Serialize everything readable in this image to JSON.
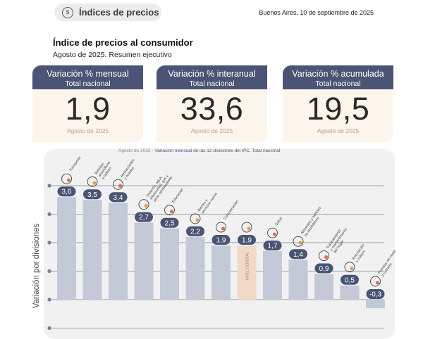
{
  "header": {
    "section_label": "Índices de precios",
    "date": "Buenos Aires, 10 de septiembre de 2025"
  },
  "report": {
    "title": "Índice de precios al consumidor",
    "subtitle": "Agosto de 2025. Resumen ejecutivo"
  },
  "cards": [
    {
      "title": "Variación % mensual",
      "subtitle": "Total nacional",
      "value": "1,9",
      "footer": "Agosto de 2025"
    },
    {
      "title": "Variación % interanual",
      "subtitle": "Total nacional",
      "value": "33,6",
      "footer": "Agosto de 2025"
    },
    {
      "title": "Variación % acumulada",
      "subtitle": "Total nacional",
      "value": "19,5",
      "footer": "Agosto de 2025"
    }
  ],
  "chart_data": {
    "type": "bar",
    "title_prefix": "Agosto de 2025",
    "title": "Variación mensual de las 12 divisiones del IPC. Total nacional",
    "ylabel": "Variación por divisiones",
    "categories": [
      "Transporte",
      "Bebidas alcohólicas y tabaco",
      "Restaurantes y hoteles",
      "Vivienda, agua, electricidad, gas y otros combustibles",
      "Educación",
      "Bienes y servicios varios",
      "Comunicación",
      "Nivel general",
      "Salud",
      "Alimentos y bebidas no alcohólicas",
      "Equipamiento y mantenimiento del hogar",
      "Recreación y cultura",
      "Prendas de vestir y calzado"
    ],
    "category_lines": [
      [
        "Transporte"
      ],
      [
        "Bebidas",
        "alcohólicas",
        "y tabaco"
      ],
      [
        "Restaurantes",
        "y hoteles"
      ],
      [
        "Vivienda, agua,",
        "electricidad, gas y",
        "otros combustibles"
      ],
      [
        "Educación"
      ],
      [
        "Bienes y",
        "servicios varios"
      ],
      [
        "Comunicación"
      ],
      [
        "Nivel",
        "general"
      ],
      [
        "Salud"
      ],
      [
        "Alimentos y bebidas",
        "no alcohólicas"
      ],
      [
        "Equipamiento",
        "y mantenimiento",
        "del hogar"
      ],
      [
        "Recreación",
        "y cultura"
      ],
      [
        "Prendas de vestir",
        "y calzado"
      ]
    ],
    "values": [
      3.6,
      3.5,
      3.4,
      2.7,
      2.5,
      2.2,
      1.9,
      1.9,
      1.7,
      1.4,
      0.9,
      0.5,
      -0.3
    ],
    "value_labels": [
      "3,6",
      "3,5",
      "3,4",
      "2,7",
      "2,5",
      "2,2",
      "1,9",
      "1,9",
      "1,7",
      "1,4",
      "0,9",
      "0,5",
      "-0,3"
    ],
    "highlight_index": 7,
    "ylim": [
      -0.6,
      4.0
    ],
    "grid": true,
    "colors": {
      "bar": "#c3c9d6",
      "highlight": "#f1d9c8",
      "badge": "#4a5474",
      "grid": "#7a8296",
      "accent": "#f2b24a"
    }
  }
}
